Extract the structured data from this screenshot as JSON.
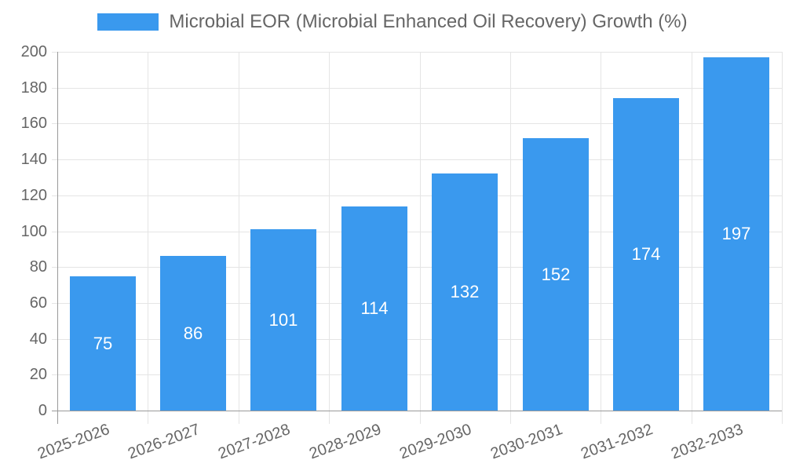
{
  "chart_data": {
    "type": "bar",
    "title": "Microbial EOR (Microbial Enhanced Oil Recovery) Growth (%)",
    "legend_position": "top",
    "categories": [
      "2025-2026",
      "2026-2027",
      "2027-2028",
      "2028-2029",
      "2029-2030",
      "2030-2031",
      "2031-2032",
      "2032-2033"
    ],
    "series": [
      {
        "name": "Microbial EOR (Microbial Enhanced Oil Recovery) Growth (%)",
        "values": [
          75,
          86,
          101,
          114,
          132,
          152,
          174,
          197
        ]
      }
    ],
    "xlabel": "",
    "ylabel": "",
    "ylim": [
      0,
      200
    ],
    "ytick_step": 20,
    "yticks": [
      "0",
      "20",
      "40",
      "60",
      "80",
      "100",
      "120",
      "140",
      "160",
      "180",
      "200"
    ],
    "grid": true,
    "value_labels_position": "center-inside",
    "x_tick_rotation_deg": -20,
    "colors": {
      "bar": "#3a99ee",
      "value_label": "#ffffff",
      "grid": "#e5e5e5",
      "axis": "#9a9a9a",
      "tick_label": "#666666",
      "legend_text": "#666666"
    }
  }
}
